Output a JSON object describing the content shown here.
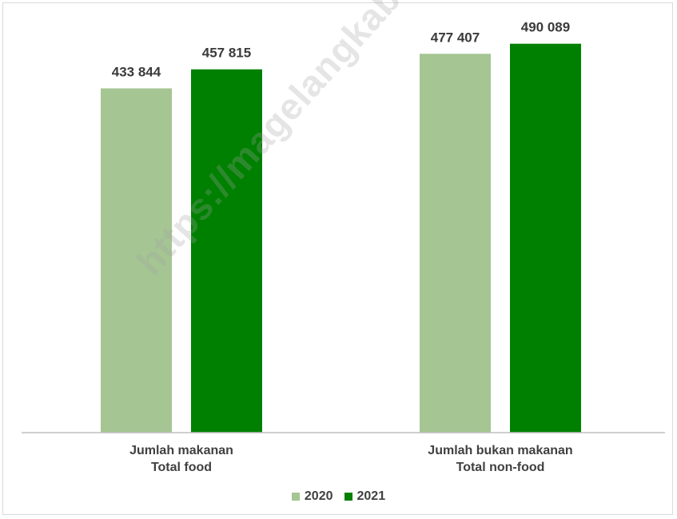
{
  "chart_data": {
    "type": "bar",
    "categories": [
      [
        "Jumlah makanan",
        "Total food"
      ],
      [
        "Jumlah bukan makanan",
        "Total non-food"
      ]
    ],
    "series": [
      {
        "name": "2020",
        "color": "#a5c593",
        "values": [
          433844,
          477407
        ],
        "labels": [
          "433 844",
          "477 407"
        ]
      },
      {
        "name": "2021",
        "color": "#008000",
        "values": [
          457815,
          490089
        ],
        "labels": [
          "457 815",
          "490 089"
        ]
      }
    ],
    "ylim": [
      0,
      520000
    ],
    "grid": false,
    "legend_position": "bottom"
  },
  "watermark": "https://magelangkab.bps.go.id"
}
